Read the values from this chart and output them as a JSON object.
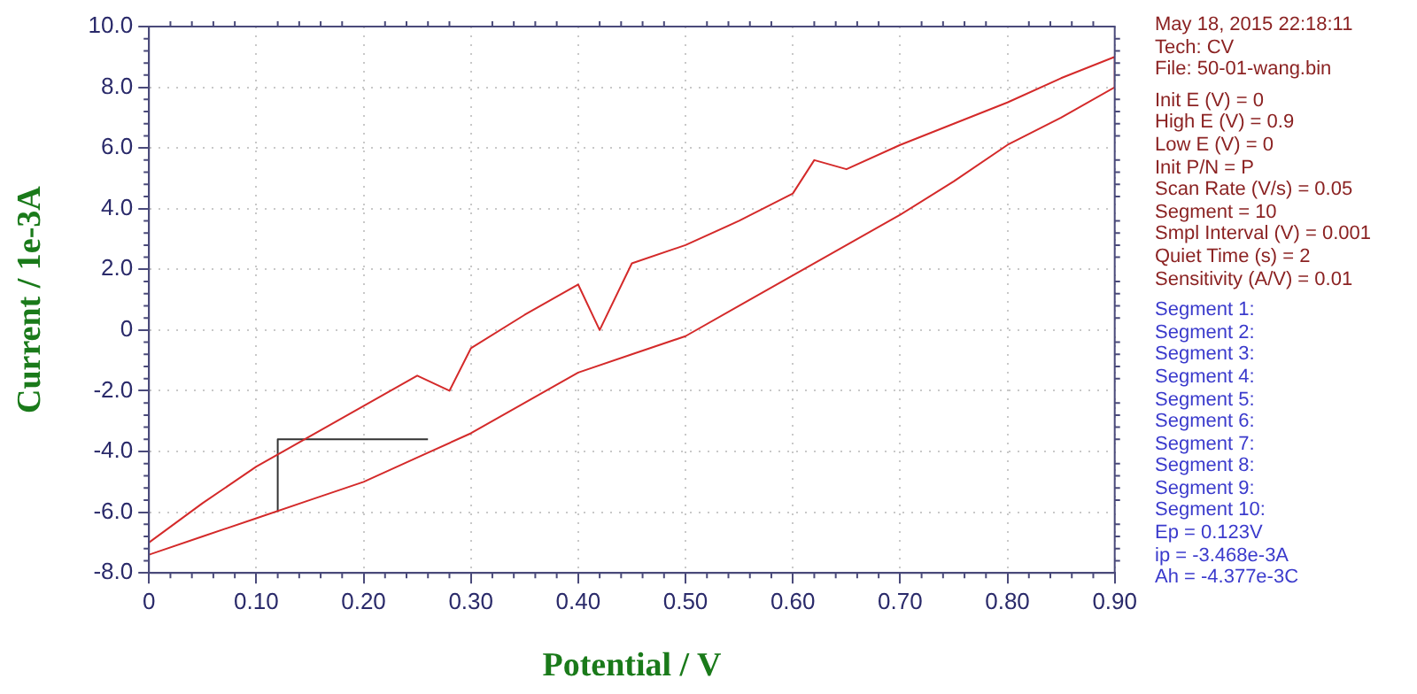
{
  "chart_data": {
    "type": "line",
    "xlabel": "Potential / V",
    "ylabel": "Current / 1e-3A",
    "annotations": [
      "May 18, 2015   22:18:11",
      "Tech: CV",
      "File: 50-01-wang.bin",
      "Init E (V) = 0",
      "High E (V) = 0.9",
      "Low E (V) = 0",
      "Init P/N = P",
      "Scan Rate (V/s) = 0.05",
      "Segment = 10",
      "Smpl Interval (V) = 0.001",
      "Quiet Time (s) = 2",
      "Sensitivity (A/V) = 0.01",
      "Segment 1:",
      "Segment 2:",
      "Segment 3:",
      "Segment 4:",
      "Segment 5:",
      "Segment 6:",
      "Segment 7:",
      "Segment 8:",
      "Segment 9:",
      "Segment 10:",
      "Ep = 0.123V",
      "ip = -3.468e-3A",
      "Ah = -4.377e-3C"
    ],
    "series": [
      {
        "color": "#d42a2a",
        "x": [
          0,
          0.05,
          0.1,
          0.15,
          0.2,
          0.25,
          0.3,
          0.35,
          0.4,
          0.45,
          0.5,
          0.55,
          0.6,
          0.65,
          0.7,
          0.75,
          0.8,
          0.85,
          0.9,
          0.9,
          0.85,
          0.8,
          0.75,
          0.7,
          0.65,
          0.62,
          0.6,
          0.55,
          0.5,
          0.45,
          0.42,
          0.4,
          0.35,
          0.3,
          0.28,
          0.25,
          0.2,
          0.15,
          0.1,
          0.05,
          0
        ],
        "values": [
          -7.4,
          -6.8,
          -6.2,
          -5.6,
          -5.0,
          -4.2,
          -3.4,
          -2.4,
          -1.4,
          -0.8,
          -0.2,
          0.8,
          1.8,
          2.8,
          3.8,
          4.9,
          6.1,
          7.0,
          8.0,
          9.0,
          8.3,
          7.5,
          6.8,
          6.1,
          5.3,
          5.6,
          4.5,
          3.6,
          2.8,
          2.2,
          0,
          1.5,
          0.5,
          -0.6,
          -2.0,
          -1.5,
          -2.5,
          -3.5,
          -4.5,
          -5.7,
          -7.0
        ]
      },
      {
        "color": "#333333",
        "x": [
          0.12,
          0.12,
          0.26
        ],
        "values": [
          -6.0,
          -3.6,
          -3.6
        ]
      }
    ],
    "xlim": [
      0,
      0.9
    ],
    "xticks": [
      0,
      {
        "value": 0.1,
        "label": "0.10"
      },
      {
        "value": 0.2,
        "label": "0.20"
      },
      {
        "value": 0.3,
        "label": "0.30"
      },
      {
        "value": 0.4,
        "label": "0.40"
      },
      {
        "value": 0.5,
        "label": "0.50"
      },
      {
        "value": 0.6,
        "label": "0.60"
      },
      {
        "value": 0.7,
        "label": "0.70"
      },
      {
        "value": 0.8,
        "label": "0.80"
      },
      {
        "value": 0.9,
        "label": "0.90"
      }
    ],
    "ylim": [
      -8,
      10
    ],
    "yticks": [
      {
        "value": -8,
        "label": "-8.0"
      },
      {
        "value": -6,
        "label": "-6.0"
      },
      {
        "value": -4,
        "label": "-4.0"
      },
      {
        "value": -2,
        "label": "-2.0"
      },
      0,
      {
        "value": 2,
        "label": "2.0"
      },
      {
        "value": 4,
        "label": "4.0"
      },
      {
        "value": 6,
        "label": "6.0"
      },
      {
        "value": 8,
        "label": "8.0"
      },
      {
        "value": 10,
        "label": "10.0"
      }
    ],
    "grid": true,
    "marker": "none"
  }
}
